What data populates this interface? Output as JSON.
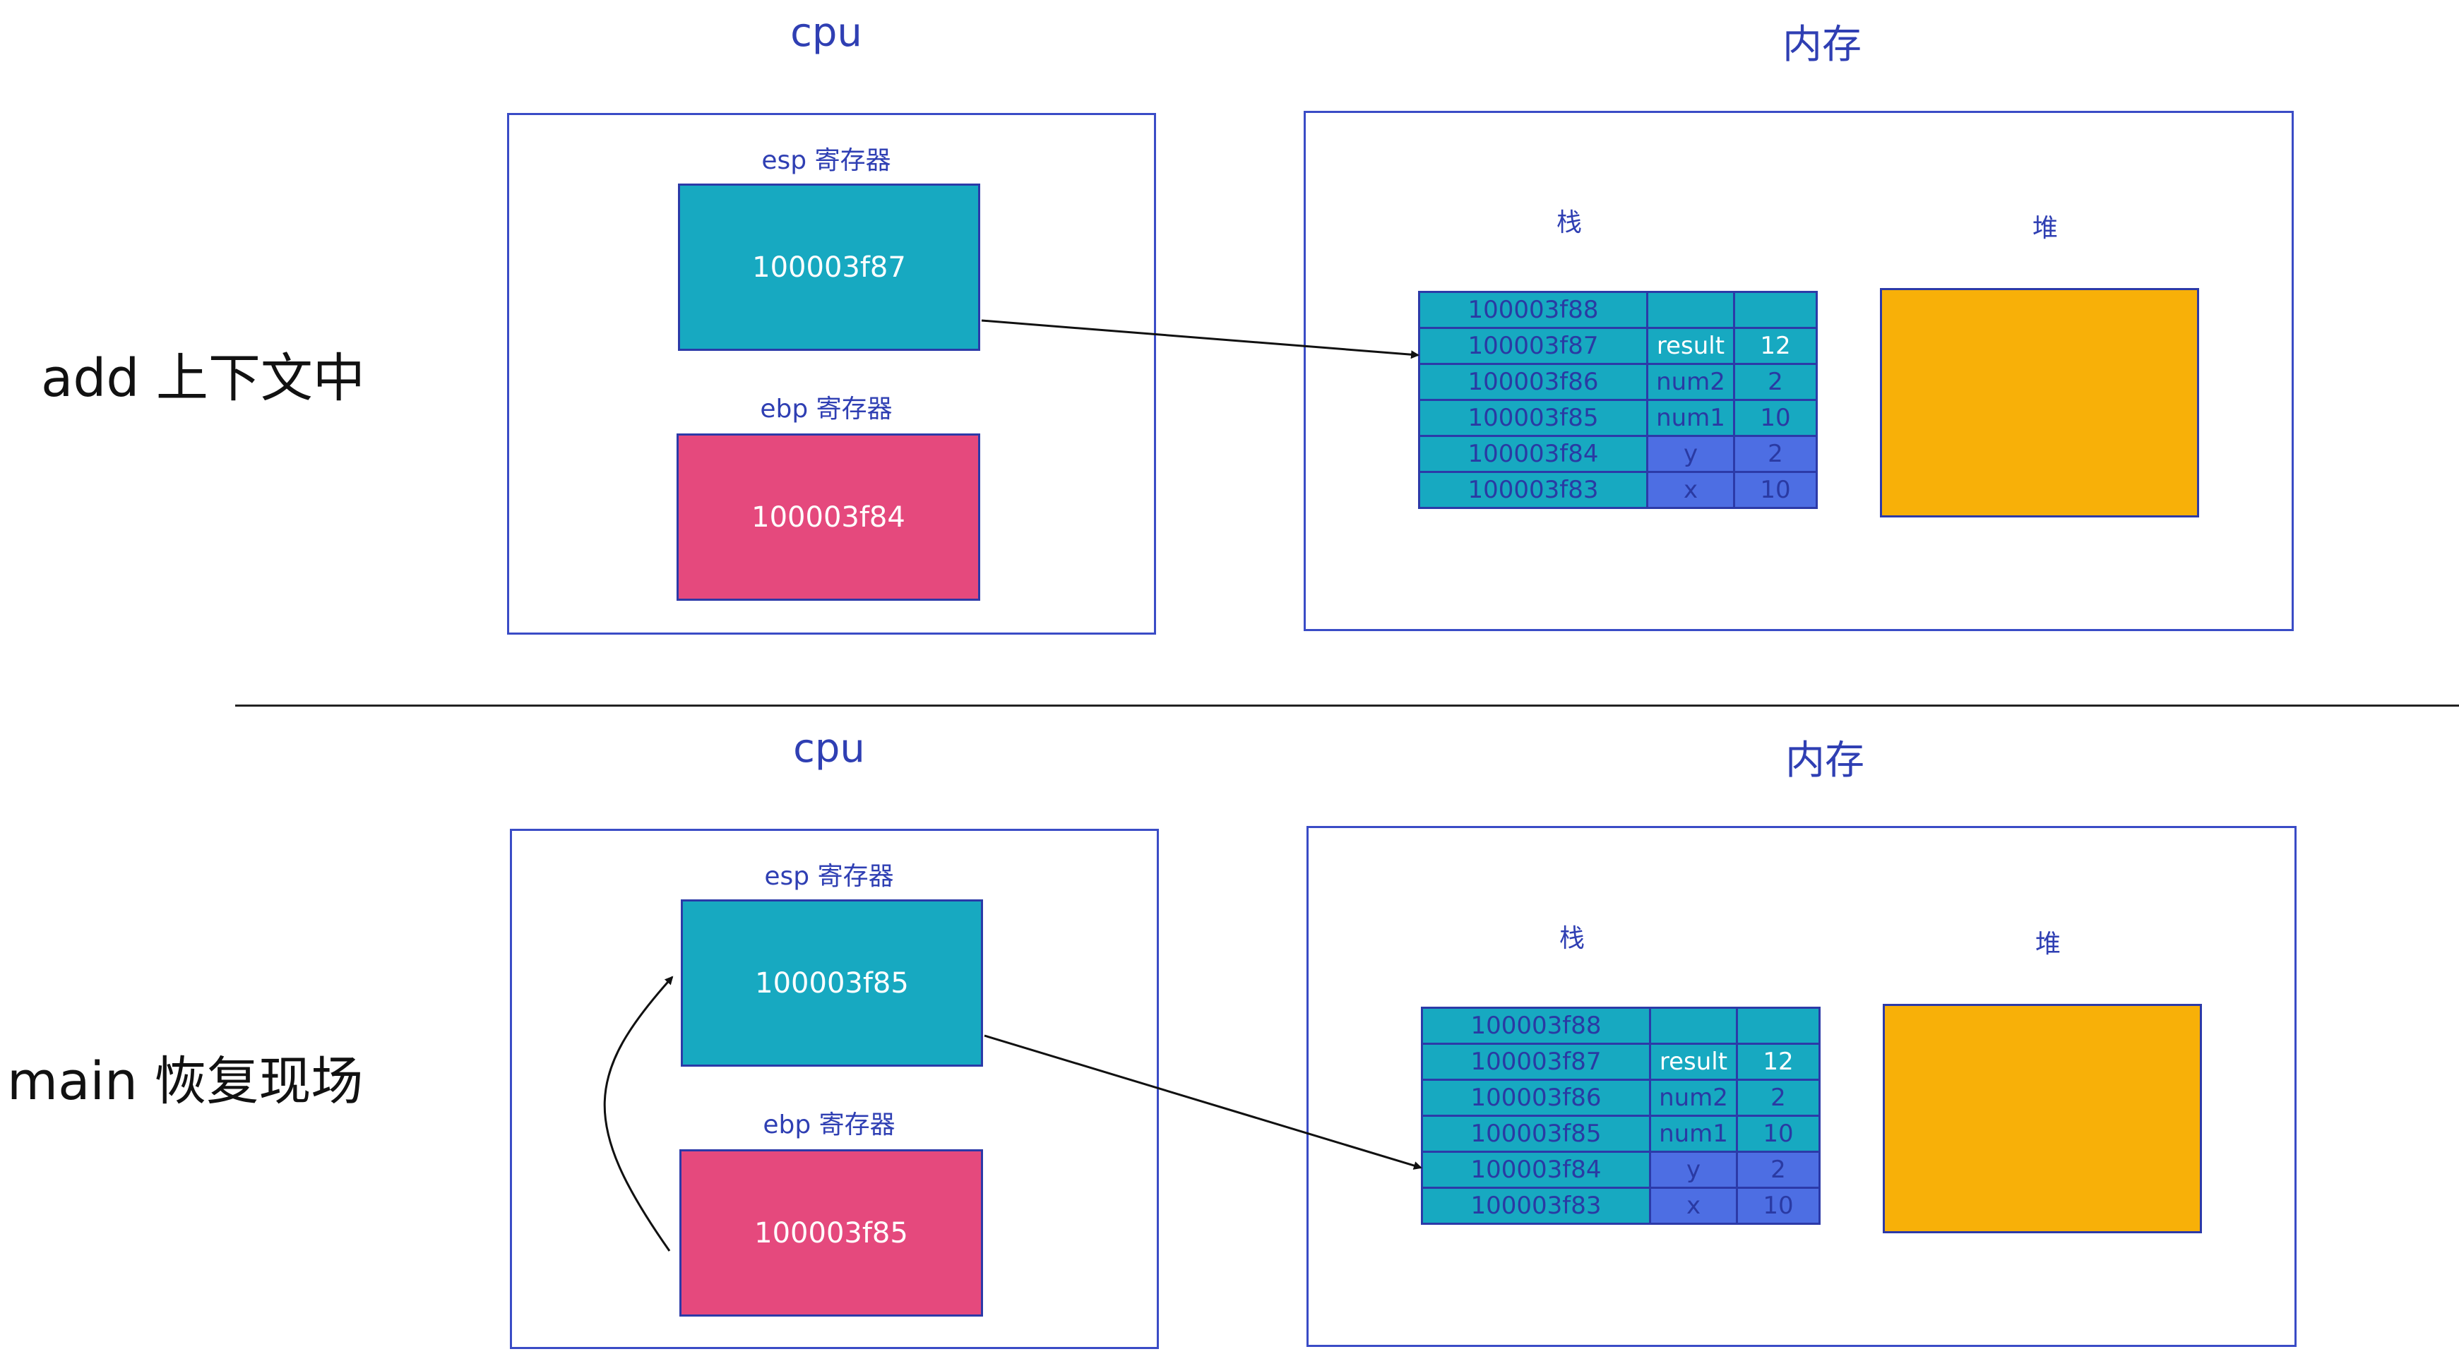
{
  "diagrams": [
    {
      "side_label": "add  上下文中",
      "cpu_title": "cpu",
      "mem_title": "内存",
      "esp": {
        "label": "esp 寄存器",
        "value": "100003f87"
      },
      "ebp": {
        "label": "ebp 寄存器",
        "value": "100003f84"
      },
      "stack_label": "栈",
      "heap_label": "堆",
      "stack_rows": [
        {
          "addr": "100003f88",
          "name": "",
          "value": ""
        },
        {
          "addr": "100003f87",
          "name": "result",
          "value": "12"
        },
        {
          "addr": "100003f86",
          "name": "num2",
          "value": "2"
        },
        {
          "addr": "100003f85",
          "name": "num1",
          "value": "10"
        },
        {
          "addr": "100003f84",
          "name": "y",
          "value": "2"
        },
        {
          "addr": "100003f83",
          "name": "x",
          "value": "10"
        }
      ]
    },
    {
      "side_label": "main  恢复现场",
      "cpu_title": "cpu",
      "mem_title": "内存",
      "esp": {
        "label": "esp 寄存器",
        "value": "100003f85"
      },
      "ebp": {
        "label": "ebp 寄存器",
        "value": "100003f85"
      },
      "stack_label": "栈",
      "heap_label": "堆",
      "stack_rows": [
        {
          "addr": "100003f88",
          "name": "",
          "value": ""
        },
        {
          "addr": "100003f87",
          "name": "result",
          "value": "12"
        },
        {
          "addr": "100003f86",
          "name": "num2",
          "value": "2"
        },
        {
          "addr": "100003f85",
          "name": "num1",
          "value": "10"
        },
        {
          "addr": "100003f84",
          "name": "y",
          "value": "2"
        },
        {
          "addr": "100003f83",
          "name": "x",
          "value": "10"
        }
      ]
    }
  ],
  "colors": {
    "frame": "#3a4cc6",
    "esp_fill": "#17a9c1",
    "ebp_fill": "#e5497d",
    "stack_cell": "#17a9c1",
    "stack_param_cell": "#4d6ee3",
    "heap_fill": "#f8b008"
  }
}
